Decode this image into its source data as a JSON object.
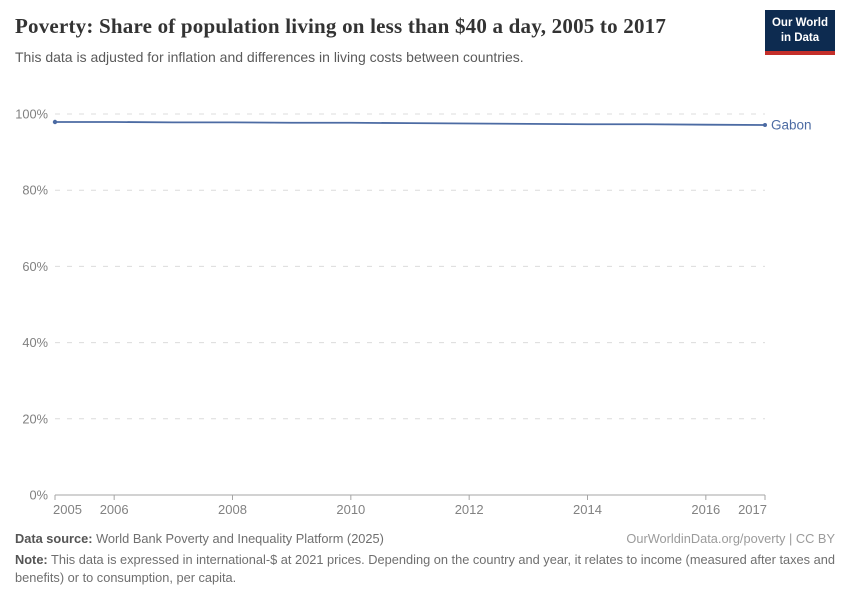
{
  "header": {
    "title": "Poverty: Share of population living on less than $40 a day, 2005 to 2017",
    "subtitle": "This data is adjusted for inflation and differences in living costs between countries.",
    "logo": {
      "line1": "Our World",
      "line2": "in Data",
      "bg_color": "#0d2b50",
      "bar_color": "#c42f2a"
    }
  },
  "chart_data": {
    "type": "line",
    "title": "Poverty: Share of population living on less than $40 a day, 2005 to 2017",
    "x": [
      2005,
      2006,
      2007,
      2008,
      2009,
      2010,
      2011,
      2012,
      2013,
      2014,
      2015,
      2016,
      2017
    ],
    "series": [
      {
        "name": "Gabon",
        "color": "#4c6ba3",
        "values": [
          97.9,
          97.9,
          97.8,
          97.8,
          97.7,
          97.7,
          97.6,
          97.5,
          97.4,
          97.3,
          97.3,
          97.2,
          97.1
        ]
      }
    ],
    "xlabel": "",
    "ylabel": "",
    "ylim": [
      0,
      100
    ],
    "y_ticks": [
      0,
      20,
      40,
      60,
      80,
      100
    ],
    "y_tick_suffix": "%",
    "x_ticks": [
      2005,
      2006,
      2008,
      2010,
      2012,
      2014,
      2016,
      2017
    ],
    "grid": "horizontal-dashed",
    "legend_position": "end-of-line-label",
    "axis_color": "#a5a5a5",
    "grid_color": "#dcdcdc",
    "tick_label_color": "#828282"
  },
  "footer": {
    "source_label": "Data source:",
    "source_text": " World Bank Poverty and Inequality Platform (2025)",
    "attribution": "OurWorldinData.org/poverty | CC BY",
    "note_label": "Note:",
    "note_text": " This data is expressed in international-$ at 2021 prices. Depending on the country and year, it relates to income (measured after taxes and benefits) or to consumption, per capita."
  }
}
